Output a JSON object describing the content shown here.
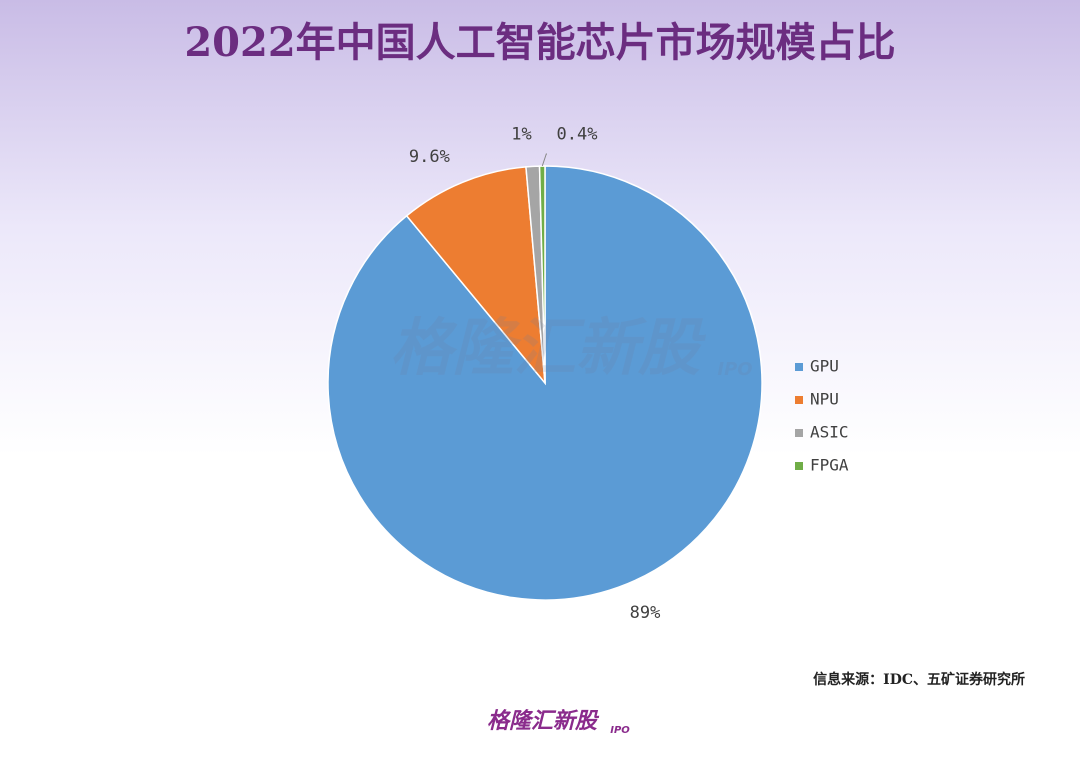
{
  "chart_data": {
    "type": "pie",
    "title": "2022年中国人工智能芯片市场规模占比",
    "categories": [
      "GPU",
      "NPU",
      "ASIC",
      "FPGA"
    ],
    "values": [
      89,
      9.6,
      1,
      0.4
    ],
    "value_labels": [
      "89%",
      "9.6%",
      "1%",
      "0.4%"
    ],
    "colors": [
      "#5b9bd5",
      "#ed7d31",
      "#a5a5a5",
      "#70ad47"
    ],
    "legend": "right",
    "source": "信息来源：IDC、五矿证券研究所",
    "watermark": {
      "text": "格隆汇新股",
      "tag": "IPO"
    }
  }
}
